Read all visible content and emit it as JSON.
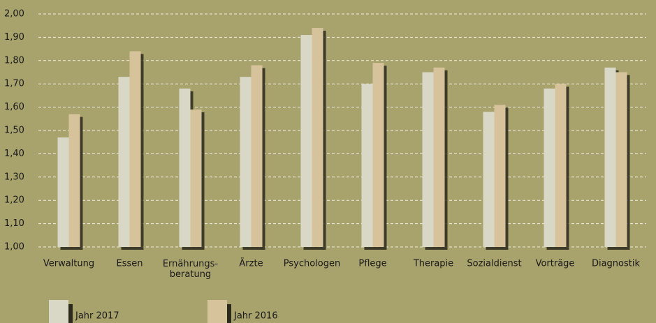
{
  "chart_data": {
    "type": "bar",
    "categories": [
      "Verwaltung",
      "Essen",
      "Ernährungs-\nberatung",
      "Ärzte",
      "Psychologen",
      "Pflege",
      "Therapie",
      "Sozialdienst",
      "Vorträge",
      "Diagnostik"
    ],
    "series": [
      {
        "name": "Jahr 2017",
        "color": "#d9d8c6",
        "values": [
          1.47,
          1.73,
          1.68,
          1.73,
          1.91,
          1.7,
          1.75,
          1.58,
          1.68,
          1.77
        ]
      },
      {
        "name": "Jahr 2016",
        "color": "#d6c39c",
        "values": [
          1.57,
          1.84,
          1.59,
          1.78,
          1.94,
          1.79,
          1.77,
          1.61,
          1.7,
          1.75
        ]
      }
    ],
    "ylim": [
      1,
      2
    ],
    "yticks": [
      {
        "value": 1,
        "label": "1,00"
      },
      {
        "value": 1.1,
        "label": "1,10"
      },
      {
        "value": 1.2,
        "label": "1,20"
      },
      {
        "value": 1.3,
        "label": "1,30"
      },
      {
        "value": 1.4,
        "label": "1,40"
      },
      {
        "value": 1.5,
        "label": "1,50"
      },
      {
        "value": 1.6,
        "label": "1,60"
      },
      {
        "value": 1.7,
        "label": "1,70"
      },
      {
        "value": 1.8,
        "label": "1,80"
      },
      {
        "value": 1.9,
        "label": "1,90"
      },
      {
        "value": 2,
        "label": "2,00"
      }
    ],
    "grid": true
  }
}
